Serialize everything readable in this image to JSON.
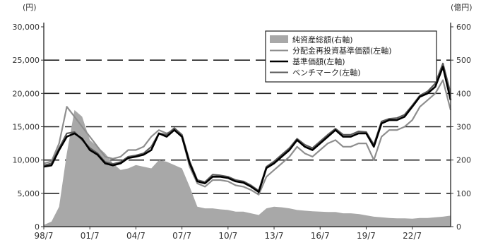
{
  "chart_data": {
    "type": "area",
    "title": "",
    "axes": {
      "left": {
        "unit": "(円)",
        "min": 0,
        "max": 30000,
        "ticks": [
          "0",
          "5,000",
          "10,000",
          "15,000",
          "20,000",
          "25,000",
          "30,000"
        ],
        "tick_values": [
          0,
          5000,
          10000,
          15000,
          20000,
          25000,
          30000
        ]
      },
      "right": {
        "unit": "(億円)",
        "min": 0,
        "max": 600,
        "ticks": [
          "0",
          "100",
          "200",
          "300",
          "400",
          "500",
          "600"
        ],
        "tick_values": [
          0,
          100,
          200,
          300,
          400,
          500,
          600
        ]
      },
      "x": {
        "ticks": [
          "98/7",
          "01/7",
          "04/7",
          "07/7",
          "10/7",
          "13/7",
          "16/7",
          "19/7",
          "22/7"
        ],
        "tick_values": [
          1998.5,
          2001.5,
          2004.5,
          2007.5,
          2010.5,
          2013.5,
          2016.5,
          2019.5,
          2022.5
        ],
        "min": 1998.5,
        "max": 2025.0
      }
    },
    "grid": {
      "horizontal": true,
      "style": "dashed",
      "at": [
        5000,
        10000,
        15000,
        20000,
        25000
      ]
    },
    "legend": {
      "placement": "top-right",
      "entries": [
        "純資産総額(右軸)",
        "分配金再投資基準価額(左軸)",
        "基準価額(左軸)",
        "ベンチマーク(左軸)"
      ]
    },
    "series": [
      {
        "name": "純資産総額(右軸)",
        "axis": "right",
        "style": "area",
        "color": "#a8a8a8",
        "x": [
          1998.5,
          1999.0,
          1999.5,
          2000.0,
          2000.5,
          2001.0,
          2001.5,
          2002.0,
          2002.5,
          2003.0,
          2003.5,
          2004.0,
          2004.5,
          2005.0,
          2005.5,
          2006.0,
          2006.5,
          2007.0,
          2007.5,
          2008.0,
          2008.5,
          2009.0,
          2009.5,
          2010.0,
          2010.5,
          2011.0,
          2011.5,
          2012.0,
          2012.5,
          2013.0,
          2013.5,
          2014.0,
          2014.5,
          2015.0,
          2015.5,
          2016.0,
          2016.5,
          2017.0,
          2017.5,
          2018.0,
          2018.5,
          2019.0,
          2019.5,
          2020.0,
          2020.5,
          2021.0,
          2021.5,
          2022.0,
          2022.5,
          2023.0,
          2023.5,
          2024.0,
          2024.5,
          2025.0
        ],
        "values": [
          5,
          15,
          60,
          220,
          350,
          330,
          260,
          240,
          220,
          190,
          170,
          175,
          185,
          180,
          175,
          200,
          195,
          185,
          175,
          120,
          60,
          55,
          55,
          52,
          50,
          45,
          45,
          40,
          35,
          55,
          60,
          58,
          55,
          50,
          48,
          46,
          45,
          44,
          44,
          40,
          40,
          38,
          34,
          30,
          28,
          26,
          25,
          25,
          24,
          26,
          26,
          28,
          30,
          33
        ]
      },
      {
        "name": "分配金再投資基準価額(左軸)",
        "axis": "left",
        "style": "line",
        "color": "#8e8e8e",
        "x": [
          1998.5,
          1999.0,
          1999.5,
          2000.0,
          2000.5,
          2001.0,
          2001.5,
          2002.0,
          2002.5,
          2003.0,
          2003.5,
          2004.0,
          2004.5,
          2005.0,
          2005.5,
          2006.0,
          2006.5,
          2007.0,
          2007.5,
          2008.0,
          2008.5,
          2009.0,
          2009.5,
          2010.0,
          2010.5,
          2011.0,
          2011.5,
          2012.0,
          2012.5,
          2013.0,
          2013.5,
          2014.0,
          2014.5,
          2015.0,
          2015.5,
          2016.0,
          2016.5,
          2017.0,
          2017.5,
          2018.0,
          2018.5,
          2019.0,
          2019.5,
          2020.0,
          2020.5,
          2021.0,
          2021.5,
          2022.0,
          2022.5,
          2023.0,
          2023.5,
          2024.0,
          2024.5,
          2025.0
        ],
        "values": [
          9500,
          9800,
          12500,
          18000,
          16500,
          15000,
          13500,
          12000,
          10500,
          10200,
          10500,
          11500,
          11500,
          12000,
          13500,
          14500,
          14000,
          14500,
          13500,
          9000,
          6500,
          6000,
          7000,
          7000,
          6800,
          6200,
          6000,
          5500,
          4800,
          7500,
          8500,
          9500,
          10500,
          12000,
          11000,
          10500,
          11500,
          12500,
          13000,
          12000,
          12000,
          12500,
          12500,
          10000,
          13500,
          14500,
          14500,
          15000,
          16000,
          18000,
          19000,
          20000,
          22000,
          17500
        ]
      },
      {
        "name": "基準価額(左軸)",
        "axis": "left",
        "style": "line",
        "color": "#000000",
        "x": [
          1998.5,
          1999.0,
          1999.5,
          2000.0,
          2000.5,
          2001.0,
          2001.5,
          2002.0,
          2002.5,
          2003.0,
          2003.5,
          2004.0,
          2004.5,
          2005.0,
          2005.5,
          2006.0,
          2006.5,
          2007.0,
          2007.5,
          2008.0,
          2008.5,
          2009.0,
          2009.5,
          2010.0,
          2010.5,
          2011.0,
          2011.5,
          2012.0,
          2012.5,
          2013.0,
          2013.5,
          2014.0,
          2014.5,
          2015.0,
          2015.5,
          2016.0,
          2016.5,
          2017.0,
          2017.5,
          2018.0,
          2018.5,
          2019.0,
          2019.5,
          2020.0,
          2020.5,
          2021.0,
          2021.5,
          2022.0,
          2022.5,
          2023.0,
          2023.5,
          2024.0,
          2024.5,
          2025.0
        ],
        "values": [
          9000,
          9200,
          11500,
          13500,
          14000,
          13200,
          11500,
          10800,
          9500,
          9200,
          9500,
          10300,
          10500,
          10800,
          11500,
          14000,
          13500,
          14500,
          13500,
          9500,
          6800,
          6500,
          7500,
          7500,
          7300,
          6800,
          6600,
          6000,
          5200,
          8800,
          9500,
          10500,
          11500,
          13000,
          12000,
          11500,
          12500,
          13500,
          14500,
          13500,
          13500,
          14000,
          14000,
          12000,
          15500,
          16000,
          16000,
          16500,
          18000,
          19500,
          20000,
          21000,
          24000,
          19000
        ]
      },
      {
        "name": "ベンチマーク(左軸)",
        "axis": "left",
        "style": "line",
        "color": "#5a5a5a",
        "x": [
          1998.5,
          1999.0,
          1999.5,
          2000.0,
          2000.5,
          2001.0,
          2001.5,
          2002.0,
          2002.5,
          2003.0,
          2003.5,
          2004.0,
          2004.5,
          2005.0,
          2005.5,
          2006.0,
          2006.5,
          2007.0,
          2007.5,
          2008.0,
          2008.5,
          2009.0,
          2009.5,
          2010.0,
          2010.5,
          2011.0,
          2011.5,
          2012.0,
          2012.5,
          2013.0,
          2013.5,
          2014.0,
          2014.5,
          2015.0,
          2015.5,
          2016.0,
          2016.5,
          2017.0,
          2017.5,
          2018.0,
          2018.5,
          2019.0,
          2019.5,
          2020.0,
          2020.5,
          2021.0,
          2021.5,
          2022.0,
          2022.5,
          2023.0,
          2023.5,
          2024.0,
          2024.5,
          2025.0
        ],
        "values": [
          9200,
          9500,
          11800,
          14000,
          14200,
          13000,
          11800,
          11000,
          9700,
          9400,
          9700,
          10500,
          10700,
          11000,
          12000,
          14000,
          13800,
          14800,
          13800,
          9800,
          7000,
          6700,
          7800,
          7700,
          7500,
          7000,
          6800,
          6200,
          5400,
          9000,
          9800,
          10800,
          11800,
          13200,
          12300,
          11800,
          12800,
          13800,
          14700,
          13800,
          13800,
          14300,
          14200,
          12300,
          15800,
          16200,
          16300,
          16800,
          18200,
          19700,
          20300,
          21500,
          24500,
          20000
        ]
      }
    ]
  }
}
